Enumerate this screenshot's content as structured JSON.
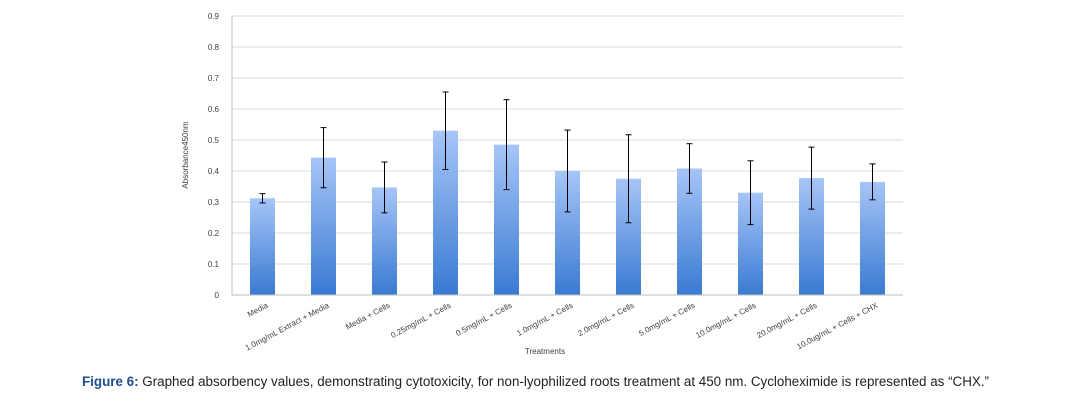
{
  "caption": {
    "label": "Figure 6:",
    "text": "Graphed absorbency values, demonstrating cytotoxicity, for non-lyophilized roots treatment at 450 nm. Cycloheximide is represented as “CHX.”"
  },
  "colors": {
    "bar_top": "#a6c5f7",
    "bar_bottom": "#3a7ad2",
    "grid": "#d9d9d9",
    "error_bar": "#000000"
  },
  "chart_data": {
    "type": "bar",
    "xlabel": "Treatments",
    "ylabel": "Absorbance450nm",
    "ylim": [
      0,
      0.9
    ],
    "yticks": [
      "0",
      "0.1",
      "0.2",
      "0.3",
      "0.4",
      "0.5",
      "0.6",
      "0.7",
      "0.8",
      "0.9"
    ],
    "grid": true,
    "categories": [
      "Media",
      "1.0mg/mL Extract + Media",
      "Media + Cells",
      "0.25mg/mL + Cells",
      "0.5mg/mL + Cells",
      "1.0mg/mL + Cells",
      "2.0mg/mL + Cells",
      "5.0mg/mL + Cells",
      "10.0mg/mL + Cells",
      "20.0mg/mL + Cells",
      "10.0ug/mL + Cells + CHX"
    ],
    "values": [
      0.312,
      0.443,
      0.347,
      0.53,
      0.485,
      0.4,
      0.375,
      0.408,
      0.33,
      0.377,
      0.365
    ],
    "errors": [
      0.015,
      0.097,
      0.082,
      0.125,
      0.145,
      0.132,
      0.142,
      0.08,
      0.103,
      0.1,
      0.058
    ]
  }
}
